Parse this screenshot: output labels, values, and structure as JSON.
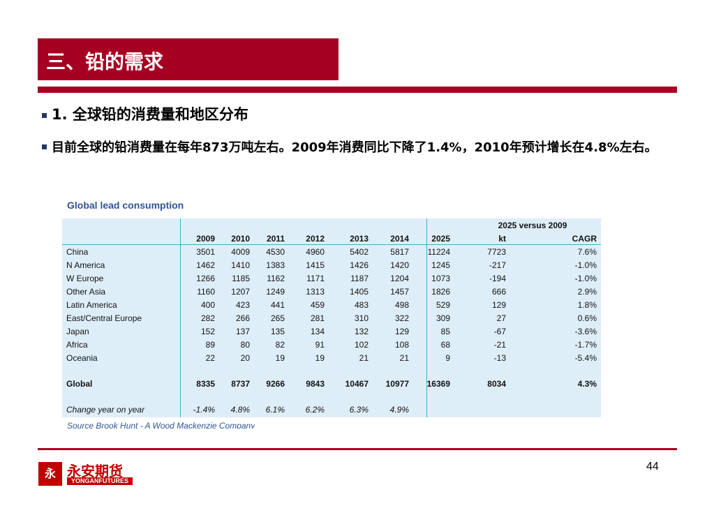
{
  "slide": {
    "title": "三、铅的需求",
    "heading": "1. 全球铅的消费量和地区分布",
    "paragraph": "目前全球的铅消费量在每年873万吨左右。2009年消费同比下降了1.4%，2010年预计增长在4.8%左右。",
    "page_number": "44",
    "accent_color": "#a50021"
  },
  "figure": {
    "title": "Global lead consumption",
    "source": "Source Brook Hunt - A Wood Mackenzie Company",
    "group_header": "2025 versus 2009",
    "columns": [
      "",
      "2009",
      "2010",
      "2011",
      "2012",
      "2013",
      "2014",
      "2025",
      "kt",
      "CAGR"
    ],
    "rows": [
      [
        "China",
        "3501",
        "4009",
        "4530",
        "4960",
        "5402",
        "5817",
        "11224",
        "7723",
        "7.6%"
      ],
      [
        "N America",
        "1462",
        "1410",
        "1383",
        "1415",
        "1426",
        "1420",
        "1245",
        "-217",
        "-1.0%"
      ],
      [
        "W Europe",
        "1266",
        "1185",
        "1162",
        "1171",
        "1187",
        "1204",
        "1073",
        "-194",
        "-1.0%"
      ],
      [
        "Other Asia",
        "1160",
        "1207",
        "1249",
        "1313",
        "1405",
        "1457",
        "1826",
        "666",
        "2.9%"
      ],
      [
        "Latin America",
        "400",
        "423",
        "441",
        "459",
        "483",
        "498",
        "529",
        "129",
        "1.8%"
      ],
      [
        "East/Central Europe",
        "282",
        "266",
        "265",
        "281",
        "310",
        "322",
        "309",
        "27",
        "0.6%"
      ],
      [
        "Japan",
        "152",
        "137",
        "135",
        "134",
        "132",
        "129",
        "85",
        "-67",
        "-3.6%"
      ],
      [
        "Africa",
        "89",
        "80",
        "82",
        "91",
        "102",
        "108",
        "68",
        "-21",
        "-1.7%"
      ],
      [
        "Oceania",
        "22",
        "20",
        "19",
        "19",
        "21",
        "21",
        "9",
        "-13",
        "-5.4%"
      ]
    ],
    "global_row": [
      "Global",
      "8335",
      "8737",
      "9266",
      "9843",
      "10467",
      "10977",
      "16369",
      "8034",
      "4.3%"
    ],
    "change_row": [
      "Change year on year",
      "-1.4%",
      "4.8%",
      "6.1%",
      "6.2%",
      "6.3%",
      "4.9%",
      "",
      "",
      ""
    ]
  },
  "logo": {
    "mark": "永",
    "name_cn": "永安期货",
    "name_en": "YONGANFUTURES"
  }
}
